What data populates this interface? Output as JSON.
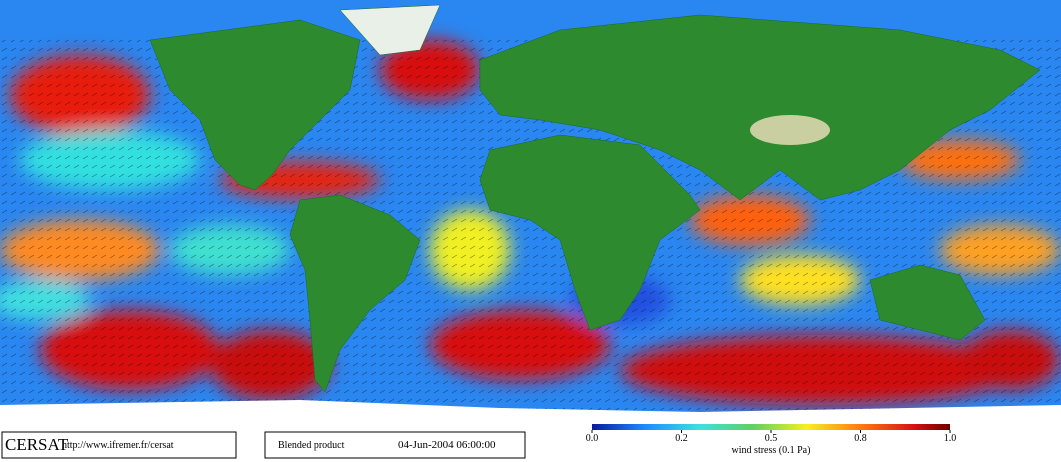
{
  "footer": {
    "brand": "CERSAT",
    "url": "http://www.ifremer.fr/cersat",
    "product": "Blended product",
    "date": "04-Jun-2004 06:00:00"
  },
  "colorbar": {
    "label": "wind stress (0.1 Pa)",
    "ticks": [
      {
        "value": 0,
        "label": "0.0"
      },
      {
        "value": 0.2,
        "label": "0.2"
      },
      {
        "value": 0.5,
        "label": "0.5"
      },
      {
        "value": 0.8,
        "label": "0.8"
      },
      {
        "value": 1,
        "label": "1.0"
      }
    ]
  }
}
